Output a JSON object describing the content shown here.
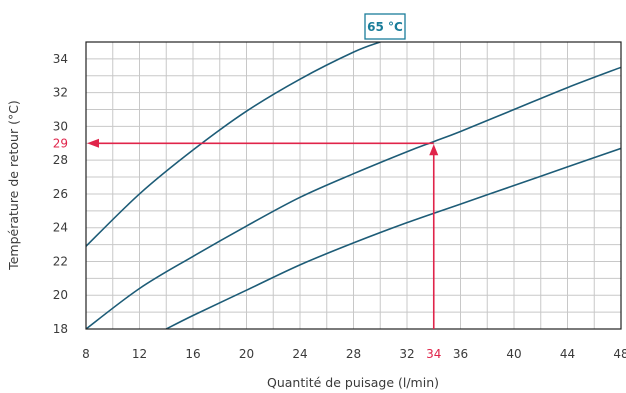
{
  "chart_data": {
    "type": "line",
    "title": "",
    "xlabel": "Quantité de puisage (l/min)",
    "ylabel": "Température de retour (°C)",
    "xlim": [
      8,
      48
    ],
    "ylim": [
      18,
      35
    ],
    "x_ticks": [
      8,
      12,
      16,
      20,
      24,
      28,
      32,
      36,
      40,
      44,
      48
    ],
    "y_ticks": [
      18,
      20,
      22,
      24,
      26,
      28,
      30,
      32,
      34
    ],
    "x_tick_labels": [
      "8",
      "12",
      "16",
      "20",
      "24",
      "28",
      "32",
      "36",
      "40",
      "44",
      "48"
    ],
    "y_tick_labels": [
      "18",
      "20",
      "22",
      "24",
      "26",
      "28",
      "30",
      "32",
      "34"
    ],
    "grid_x_step": 2,
    "grid_y_step": 1,
    "grid": true,
    "series": [
      {
        "name": "65 °C",
        "points": [
          [
            8,
            22.9
          ],
          [
            12,
            26.0
          ],
          [
            16,
            28.6
          ],
          [
            20,
            30.9
          ],
          [
            24,
            32.8
          ],
          [
            28,
            34.4
          ],
          [
            30,
            35.0
          ]
        ]
      },
      {
        "name": "",
        "points": [
          [
            8,
            18.0
          ],
          [
            12,
            20.4
          ],
          [
            16,
            22.3
          ],
          [
            20,
            24.1
          ],
          [
            24,
            25.8
          ],
          [
            28,
            27.2
          ],
          [
            32,
            28.5
          ],
          [
            34,
            29.1
          ],
          [
            36,
            29.7
          ],
          [
            40,
            31.0
          ],
          [
            44,
            32.3
          ],
          [
            48,
            33.5
          ]
        ]
      },
      {
        "name": "",
        "points": [
          [
            14,
            18.0
          ],
          [
            16,
            18.8
          ],
          [
            20,
            20.3
          ],
          [
            24,
            21.8
          ],
          [
            28,
            23.1
          ],
          [
            32,
            24.3
          ],
          [
            36,
            25.4
          ],
          [
            40,
            26.5
          ],
          [
            44,
            27.6
          ],
          [
            48,
            28.7
          ]
        ]
      }
    ],
    "highlight": {
      "x": 34,
      "y": 29,
      "x_label": "34",
      "y_label": "29",
      "color": "#e0244a"
    },
    "series_tag": "65 °C",
    "line_color": "#1d5c77",
    "tag_color": "#1a7d9a",
    "grid_color": "#c8c8c8",
    "frame_color": "#222222"
  }
}
